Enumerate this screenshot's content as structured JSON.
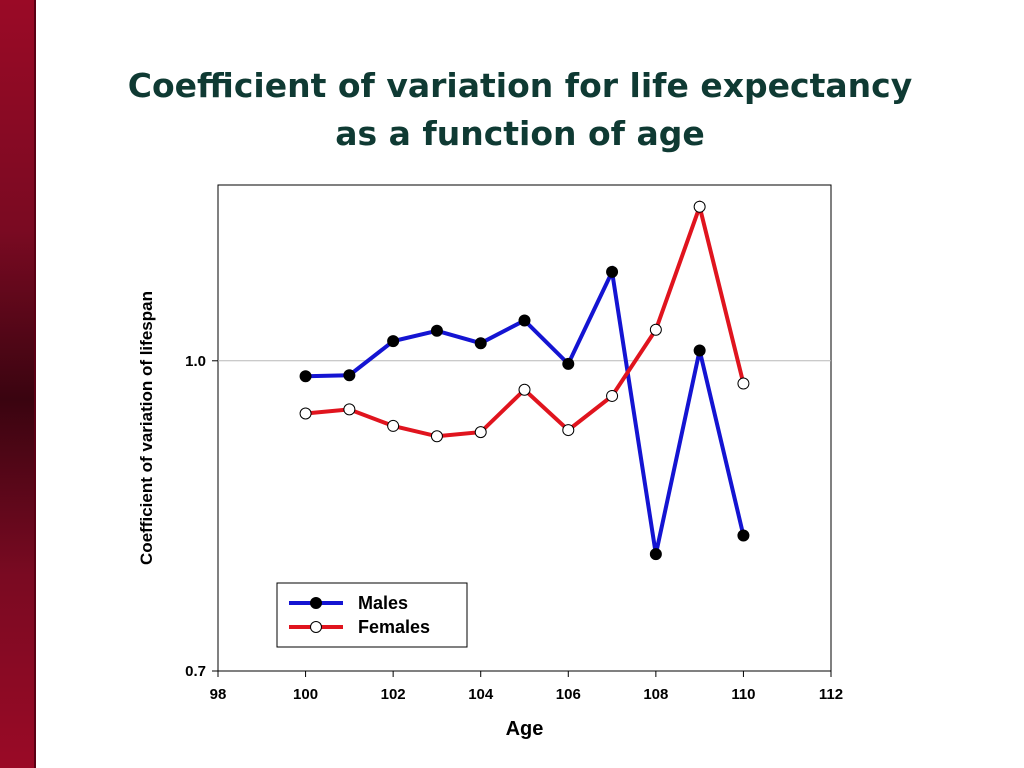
{
  "slide": {
    "title_line1": "Coefficient of variation for life expectancy",
    "title_line2": "as a function of age"
  },
  "colors": {
    "accent_bar": "#8b0a25",
    "title": "#0f3a33",
    "males": "#1414d2",
    "females": "#e0141e"
  },
  "chart_data": {
    "type": "line",
    "title": "",
    "xlabel": "Age",
    "ylabel": "Coefficient of variation of lifespan",
    "xlim": [
      98,
      112
    ],
    "ylim": [
      0.7,
      1.17
    ],
    "x_ticks": [
      98,
      100,
      102,
      104,
      106,
      108,
      110,
      112
    ],
    "y_ticks": [
      0.7,
      1.0
    ],
    "y_tick_labels": [
      "0.7",
      "1.0"
    ],
    "gridlines": [
      1.0
    ],
    "legend_position": "bottom-left",
    "series": [
      {
        "name": "Males",
        "marker": "filled-circle",
        "x": [
          100,
          101,
          102,
          103,
          104,
          105,
          106,
          107,
          108,
          109,
          110
        ],
        "y": [
          0.985,
          0.986,
          1.019,
          1.029,
          1.017,
          1.039,
          0.997,
          1.086,
          0.813,
          1.01,
          0.831
        ]
      },
      {
        "name": "Females",
        "marker": "open-circle",
        "x": [
          100,
          101,
          102,
          103,
          104,
          105,
          106,
          107,
          108,
          109,
          110
        ],
        "y": [
          0.949,
          0.953,
          0.937,
          0.927,
          0.931,
          0.972,
          0.933,
          0.966,
          1.03,
          1.149,
          0.978
        ]
      }
    ]
  }
}
